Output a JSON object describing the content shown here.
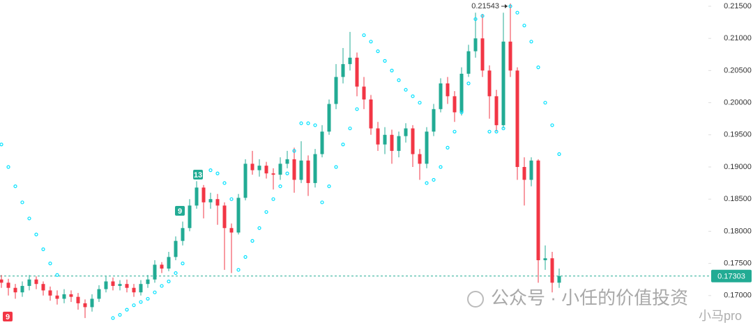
{
  "chart_data": {
    "type": "candlestick",
    "ylim": [
      0.16511,
      0.21597
    ],
    "yticks": [
      {
        "value": 0.17,
        "label": "0.17000"
      },
      {
        "value": 0.175,
        "label": "0.17500"
      },
      {
        "value": 0.18,
        "label": "0.18000"
      },
      {
        "value": 0.185,
        "label": "0.18500"
      },
      {
        "value": 0.19,
        "label": "0.19000"
      },
      {
        "value": 0.195,
        "label": "0.19500"
      },
      {
        "value": 0.2,
        "label": "0.20000"
      },
      {
        "value": 0.205,
        "label": "0.20500"
      },
      {
        "value": 0.21,
        "label": "0.21000"
      },
      {
        "value": 0.215,
        "label": "0.21500"
      }
    ],
    "up_color": "#22ab94",
    "down_color": "#f23645",
    "sar_color": "#00e1ff",
    "open": [
      0.1725,
      0.172,
      0.1712,
      0.1705,
      0.1715,
      0.1725,
      0.1718,
      0.1708,
      0.17,
      0.1695,
      0.1702,
      0.1698,
      0.1688,
      0.1682,
      0.1695,
      0.171,
      0.1722,
      0.1715,
      0.1718,
      0.1712,
      0.1705,
      0.1718,
      0.1725,
      0.1748,
      0.1742,
      0.176,
      0.1785,
      0.1805,
      0.184,
      0.1868,
      0.1845,
      0.185,
      0.184,
      0.1805,
      0.1798,
      0.1852,
      0.1905,
      0.1895,
      0.1902,
      0.189,
      0.1888,
      0.1905,
      0.1912,
      0.188,
      0.191,
      0.1875,
      0.192,
      0.1955,
      0.1998,
      0.204,
      0.206,
      0.207,
      0.2025,
      0.2005,
      0.196,
      0.1935,
      0.195,
      0.1925,
      0.1948,
      0.196,
      0.192,
      0.1905,
      0.1955,
      0.199,
      0.203,
      0.201,
      0.1985,
      0.2045,
      0.208,
      0.21,
      0.205,
      0.201,
      0.1965,
      0.2095,
      0.205,
      0.19,
      0.188,
      0.191,
      0.1755,
      0.1758,
      0.172
    ],
    "high": [
      0.1732,
      0.1726,
      0.1718,
      0.1722,
      0.1732,
      0.173,
      0.1722,
      0.1714,
      0.1708,
      0.171,
      0.1708,
      0.1704,
      0.1694,
      0.1702,
      0.1716,
      0.173,
      0.1728,
      0.1724,
      0.1725,
      0.1718,
      0.1724,
      0.1732,
      0.1755,
      0.1752,
      0.1768,
      0.1792,
      0.1815,
      0.185,
      0.1878,
      0.1872,
      0.186,
      0.1858,
      0.1845,
      0.1812,
      0.1858,
      0.1912,
      0.1925,
      0.1912,
      0.1908,
      0.1898,
      0.1915,
      0.1925,
      0.193,
      0.194,
      0.1918,
      0.1928,
      0.1965,
      0.2005,
      0.206,
      0.2085,
      0.211,
      0.2078,
      0.204,
      0.2012,
      0.197,
      0.1962,
      0.1958,
      0.1955,
      0.1968,
      0.1965,
      0.1928,
      0.1962,
      0.1998,
      0.2038,
      0.204,
      0.2018,
      0.2055,
      0.209,
      0.214,
      0.2138,
      0.2058,
      0.202,
      0.214,
      0.21543,
      0.2055,
      0.1915,
      0.1915,
      0.1912,
      0.1778,
      0.1768,
      0.1742
    ],
    "low": [
      0.1712,
      0.17,
      0.1695,
      0.1698,
      0.1708,
      0.171,
      0.17,
      0.1692,
      0.1686,
      0.1688,
      0.169,
      0.1678,
      0.1665,
      0.1675,
      0.169,
      0.1705,
      0.1708,
      0.1708,
      0.1705,
      0.1698,
      0.17,
      0.1712,
      0.172,
      0.1735,
      0.1738,
      0.1755,
      0.1778,
      0.18,
      0.1835,
      0.182,
      0.1835,
      0.181,
      0.174,
      0.1735,
      0.1795,
      0.1848,
      0.1888,
      0.1885,
      0.1882,
      0.1865,
      0.188,
      0.1898,
      0.186,
      0.1875,
      0.1855,
      0.1868,
      0.1915,
      0.195,
      0.199,
      0.203,
      0.205,
      0.201,
      0.199,
      0.195,
      0.1925,
      0.192,
      0.1905,
      0.1915,
      0.1938,
      0.19,
      0.188,
      0.1898,
      0.1948,
      0.1985,
      0.1998,
      0.197,
      0.198,
      0.204,
      0.207,
      0.204,
      0.1975,
      0.1955,
      0.196,
      0.204,
      0.188,
      0.184,
      0.187,
      0.172,
      0.174,
      0.1705,
      0.1712
    ],
    "close": [
      0.172,
      0.1712,
      0.1705,
      0.1715,
      0.1725,
      0.1718,
      0.1708,
      0.17,
      0.1695,
      0.1702,
      0.1698,
      0.1688,
      0.1682,
      0.1695,
      0.171,
      0.1722,
      0.1715,
      0.1718,
      0.1712,
      0.1705,
      0.1718,
      0.1725,
      0.1748,
      0.1742,
      0.176,
      0.1785,
      0.1805,
      0.184,
      0.1868,
      0.1845,
      0.185,
      0.184,
      0.1805,
      0.1798,
      0.1852,
      0.1905,
      0.1895,
      0.1902,
      0.189,
      0.1888,
      0.1905,
      0.1912,
      0.188,
      0.191,
      0.1875,
      0.192,
      0.1955,
      0.1998,
      0.204,
      0.206,
      0.207,
      0.2025,
      0.2005,
      0.196,
      0.1935,
      0.195,
      0.1925,
      0.1948,
      0.196,
      0.192,
      0.1905,
      0.1955,
      0.199,
      0.203,
      0.201,
      0.1985,
      0.2045,
      0.208,
      0.21,
      0.205,
      0.201,
      0.1965,
      0.2095,
      0.205,
      0.19,
      0.188,
      0.191,
      0.1755,
      0.1758,
      0.172,
      0.17303
    ],
    "sar": [
      0.1935,
      0.19,
      0.187,
      0.1845,
      0.182,
      0.1795,
      0.1772,
      0.175,
      0.1732,
      null,
      null,
      null,
      null,
      null,
      null,
      null,
      0.1665,
      0.167,
      0.1678,
      0.1685,
      0.169,
      0.1695,
      0.1705,
      0.1715,
      0.1722,
      0.1735,
      0.175,
      null,
      null,
      null,
      0.1895,
      0.189,
      0.1875,
      0.185,
      0.174,
      0.176,
      0.1785,
      0.1805,
      0.183,
      0.185,
      0.187,
      0.189,
      0.1925,
      0.1968,
      0.1968,
      0.1965,
      0.1845,
      0.187,
      0.19,
      0.1935,
      0.196,
      0.199,
      0.2105,
      0.2095,
      0.208,
      0.2065,
      0.205,
      0.2035,
      0.202,
      0.201,
      0.2,
      0.1875,
      0.188,
      0.19,
      0.193,
      0.1955,
      0.1985,
      0.203,
      0.213,
      0.2135,
      0.1955,
      0.1955,
      0.196,
      0.215,
      0.214,
      0.212,
      0.2095,
      0.2055,
      0.2,
      0.1965,
      0.192
    ],
    "high_label": "0.21543",
    "last_price_label": "0.17303",
    "last_price": 0.17303,
    "count_labels": [
      "9",
      "9",
      "13"
    ],
    "watermark": [
      "公众号 · 小任的价值投资",
      "小马pro"
    ]
  }
}
